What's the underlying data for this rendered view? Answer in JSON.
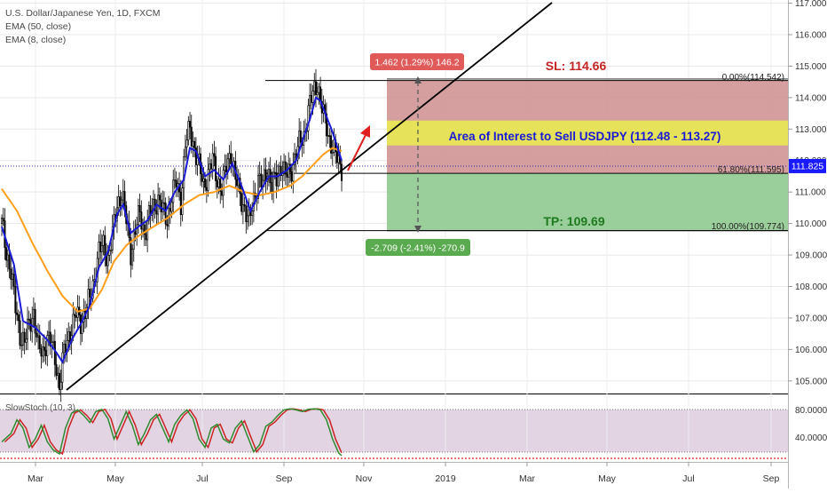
{
  "header": {
    "symbol_line": "U.S. Dollar/Japanese Yen, 1D, FXCM",
    "ema_slow": "EMA (50, close)",
    "ema_fast": "EMA (8, close)"
  },
  "colors": {
    "up_candle": "#ffffff",
    "down_candle": "#000000",
    "ema_fast": "#1a1ad6",
    "ema_slow": "#ff9e1b",
    "trendline": "#000000",
    "risk_zone": "#cf8e8e",
    "reward_zone": "#8fc98f",
    "interest_band": "#e6e25a",
    "stoch_k": "#2e8b2e",
    "stoch_d": "#cc2222",
    "price_badge": "#1a1aff"
  },
  "annotations": {
    "sl_label": "SL: 114.66",
    "tp_label": "TP: 109.69",
    "interest_label": "Area of Interest to Sell USDJPY (112.48 - 113.27)",
    "risk_badge": "1.462 (1.29%) 146.2",
    "reward_badge": "-2.709 (-2.41%) -270.9",
    "fib_0": "0.00%(114.542)",
    "fib_618": "61.80%(111.595)",
    "fib_100": "100.00%(109.774)",
    "last_price": "111.825"
  },
  "oscillator": {
    "title": "SlowStoch (10, 3)",
    "ticks": [
      "80.0000",
      "40.0000"
    ]
  },
  "chart_data": {
    "type": "candlestick",
    "title": "U.S. Dollar/Japanese Yen, 1D, FXCM",
    "price_axis": {
      "ylim": [
        104.6,
        117.1
      ],
      "ticks": [
        117,
        116,
        115,
        114,
        113,
        112,
        111,
        110,
        109,
        108,
        107,
        106,
        105
      ],
      "tick_labels": [
        "117.000",
        "116.000",
        "115.000",
        "114.000",
        "113.000",
        "112.000",
        "111.000",
        "110.000",
        "109.000",
        "108.000",
        "107.000",
        "106.000",
        "105.000"
      ]
    },
    "time_axis": {
      "labels": [
        "Mar",
        "May",
        "Jul",
        "Sep",
        "Nov",
        "2019",
        "Mar",
        "May",
        "Jul",
        "Sep"
      ]
    },
    "close_anchors": [
      [
        0,
        110.0
      ],
      [
        3,
        109.1
      ],
      [
        6,
        108.5
      ],
      [
        9,
        107.3
      ],
      [
        12,
        106.5
      ],
      [
        15,
        106.2
      ],
      [
        18,
        106.8
      ],
      [
        21,
        107.2
      ],
      [
        24,
        106.0
      ],
      [
        27,
        105.9
      ],
      [
        30,
        106.4
      ],
      [
        33,
        106.1
      ],
      [
        36,
        105.5
      ],
      [
        38,
        104.8
      ],
      [
        40,
        105.6
      ],
      [
        43,
        106.3
      ],
      [
        46,
        106.7
      ],
      [
        49,
        107.1
      ],
      [
        52,
        106.9
      ],
      [
        55,
        107.2
      ],
      [
        58,
        107.6
      ],
      [
        61,
        108.3
      ],
      [
        64,
        109.1
      ],
      [
        67,
        109.3
      ],
      [
        70,
        108.9
      ],
      [
        73,
        109.6
      ],
      [
        76,
        110.6
      ],
      [
        79,
        111.0
      ],
      [
        82,
        110.1
      ],
      [
        85,
        109.1
      ],
      [
        88,
        109.8
      ],
      [
        91,
        110.3
      ],
      [
        94,
        109.7
      ],
      [
        97,
        110.2
      ],
      [
        100,
        110.5
      ],
      [
        103,
        110.8
      ],
      [
        106,
        110.4
      ],
      [
        109,
        110.1
      ],
      [
        112,
        110.9
      ],
      [
        115,
        111.3
      ],
      [
        118,
        110.7
      ],
      [
        121,
        112.5
      ],
      [
        124,
        113.0
      ],
      [
        127,
        112.4
      ],
      [
        130,
        111.8
      ],
      [
        133,
        111.2
      ],
      [
        136,
        111.6
      ],
      [
        139,
        112.0
      ],
      [
        142,
        111.4
      ],
      [
        145,
        111.1
      ],
      [
        148,
        111.8
      ],
      [
        151,
        112.3
      ],
      [
        154,
        111.4
      ],
      [
        157,
        110.9
      ],
      [
        160,
        110.5
      ],
      [
        163,
        110.0
      ],
      [
        166,
        110.8
      ],
      [
        169,
        111.4
      ],
      [
        172,
        111.2
      ],
      [
        175,
        111.8
      ],
      [
        178,
        111.2
      ],
      [
        181,
        111.4
      ],
      [
        184,
        111.9
      ],
      [
        187,
        111.5
      ],
      [
        190,
        111.6
      ],
      [
        193,
        112.1
      ],
      [
        196,
        112.5
      ],
      [
        199,
        112.8
      ],
      [
        202,
        113.6
      ],
      [
        205,
        114.1
      ],
      [
        208,
        114.5
      ],
      [
        210,
        113.9
      ],
      [
        213,
        113.2
      ],
      [
        216,
        112.7
      ],
      [
        219,
        112.3
      ],
      [
        222,
        111.9
      ],
      [
        224,
        111.8
      ]
    ],
    "ema_fast_anchors": [
      [
        0,
        109.9
      ],
      [
        8,
        108.7
      ],
      [
        14,
        106.9
      ],
      [
        22,
        106.7
      ],
      [
        30,
        106.3
      ],
      [
        36,
        105.9
      ],
      [
        40,
        105.6
      ],
      [
        46,
        106.3
      ],
      [
        52,
        106.8
      ],
      [
        58,
        107.4
      ],
      [
        64,
        108.6
      ],
      [
        70,
        109.1
      ],
      [
        76,
        110.3
      ],
      [
        80,
        110.6
      ],
      [
        85,
        109.7
      ],
      [
        90,
        109.9
      ],
      [
        96,
        110.1
      ],
      [
        102,
        110.6
      ],
      [
        108,
        110.4
      ],
      [
        114,
        111.0
      ],
      [
        120,
        111.4
      ],
      [
        124,
        112.4
      ],
      [
        128,
        112.3
      ],
      [
        134,
        111.5
      ],
      [
        140,
        111.7
      ],
      [
        146,
        111.4
      ],
      [
        152,
        111.9
      ],
      [
        158,
        111.2
      ],
      [
        164,
        110.4
      ],
      [
        170,
        111.0
      ],
      [
        176,
        111.5
      ],
      [
        182,
        111.5
      ],
      [
        188,
        111.7
      ],
      [
        194,
        112.0
      ],
      [
        198,
        112.6
      ],
      [
        203,
        113.3
      ],
      [
        207,
        114.0
      ],
      [
        210,
        113.9
      ],
      [
        214,
        113.4
      ],
      [
        218,
        112.9
      ],
      [
        222,
        112.3
      ],
      [
        224,
        112.0
      ]
    ],
    "ema_slow_anchors": [
      [
        0,
        111.1
      ],
      [
        10,
        110.4
      ],
      [
        20,
        109.4
      ],
      [
        30,
        108.5
      ],
      [
        40,
        107.7
      ],
      [
        50,
        107.2
      ],
      [
        58,
        107.3
      ],
      [
        66,
        107.9
      ],
      [
        74,
        108.8
      ],
      [
        82,
        109.3
      ],
      [
        90,
        109.6
      ],
      [
        100,
        109.9
      ],
      [
        110,
        110.2
      ],
      [
        120,
        110.6
      ],
      [
        130,
        110.9
      ],
      [
        140,
        111.0
      ],
      [
        150,
        111.2
      ],
      [
        160,
        111.0
      ],
      [
        170,
        110.9
      ],
      [
        180,
        111.0
      ],
      [
        190,
        111.2
      ],
      [
        198,
        111.5
      ],
      [
        206,
        111.9
      ],
      [
        212,
        112.2
      ],
      [
        218,
        112.4
      ],
      [
        224,
        112.3
      ]
    ],
    "stoch_anchors": [
      [
        0,
        30
      ],
      [
        6,
        45
      ],
      [
        10,
        70
      ],
      [
        14,
        55
      ],
      [
        18,
        20
      ],
      [
        22,
        35
      ],
      [
        26,
        60
      ],
      [
        30,
        30
      ],
      [
        34,
        15
      ],
      [
        38,
        8
      ],
      [
        42,
        55
      ],
      [
        46,
        82
      ],
      [
        50,
        88
      ],
      [
        54,
        78
      ],
      [
        58,
        65
      ],
      [
        62,
        85
      ],
      [
        66,
        89
      ],
      [
        70,
        72
      ],
      [
        74,
        35
      ],
      [
        78,
        60
      ],
      [
        82,
        85
      ],
      [
        86,
        60
      ],
      [
        90,
        25
      ],
      [
        94,
        45
      ],
      [
        98,
        70
      ],
      [
        102,
        80
      ],
      [
        106,
        55
      ],
      [
        110,
        30
      ],
      [
        114,
        62
      ],
      [
        118,
        78
      ],
      [
        122,
        88
      ],
      [
        126,
        72
      ],
      [
        130,
        35
      ],
      [
        134,
        20
      ],
      [
        138,
        55
      ],
      [
        142,
        62
      ],
      [
        146,
        35
      ],
      [
        150,
        28
      ],
      [
        154,
        55
      ],
      [
        158,
        68
      ],
      [
        162,
        40
      ],
      [
        166,
        12
      ],
      [
        170,
        25
      ],
      [
        174,
        58
      ],
      [
        178,
        66
      ],
      [
        182,
        78
      ],
      [
        186,
        88
      ],
      [
        190,
        90
      ],
      [
        194,
        88
      ],
      [
        198,
        85
      ],
      [
        202,
        89
      ],
      [
        206,
        90
      ],
      [
        210,
        88
      ],
      [
        214,
        70
      ],
      [
        218,
        35
      ],
      [
        222,
        10
      ],
      [
        224,
        5
      ]
    ],
    "levels": {
      "sl": 114.66,
      "entry_high": 113.27,
      "entry_low": 112.48,
      "tp": 109.69,
      "fib_0": 114.542,
      "fib_618": 111.595,
      "fib_100": 109.774,
      "last": 111.825
    }
  }
}
